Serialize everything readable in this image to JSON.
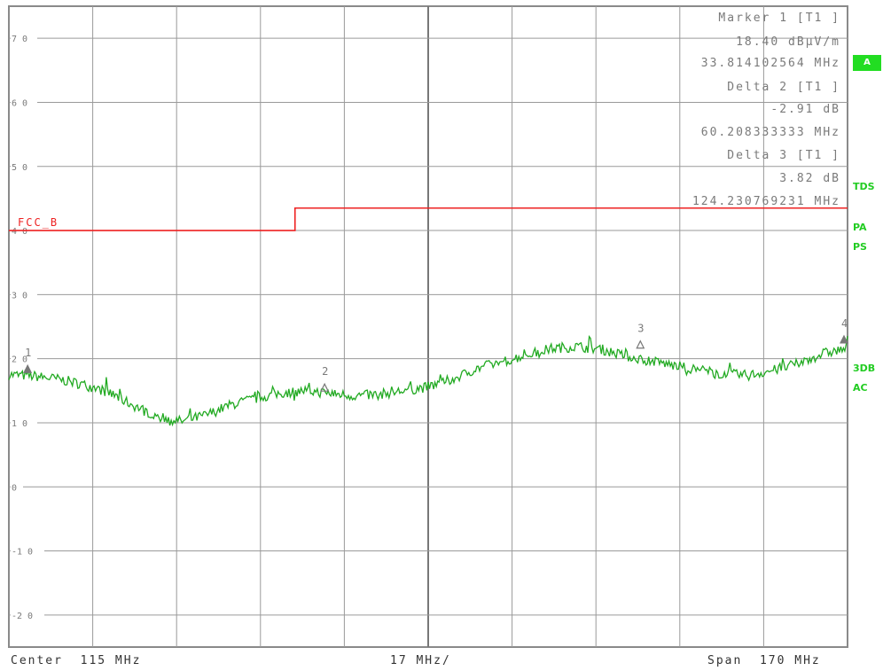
{
  "chart_data": {
    "type": "line",
    "title": "",
    "xlabel": "",
    "ylabel": "",
    "x_unit": "MHz",
    "xlim": [
      30,
      200
    ],
    "ylim": [
      -25,
      75
    ],
    "y_ticks": [
      70,
      60,
      50,
      40,
      30,
      20,
      10,
      0,
      -10,
      -20
    ],
    "grid": true,
    "series": [
      {
        "name": "",
        "color": "#22aa22",
        "points": [
          [
            30,
            17.5
          ],
          [
            35,
            17.3
          ],
          [
            40,
            16.8
          ],
          [
            45,
            16.0
          ],
          [
            50,
            14.8
          ],
          [
            55,
            12.8
          ],
          [
            60,
            11.0
          ],
          [
            65,
            10.2
          ],
          [
            70,
            11.2
          ],
          [
            75,
            12.8
          ],
          [
            80,
            13.8
          ],
          [
            85,
            14.6
          ],
          [
            90,
            15.0
          ],
          [
            95,
            14.6
          ],
          [
            100,
            14.2
          ],
          [
            105,
            14.4
          ],
          [
            110,
            15.0
          ],
          [
            115,
            15.6
          ],
          [
            120,
            16.8
          ],
          [
            125,
            18.5
          ],
          [
            130,
            19.5
          ],
          [
            135,
            20.6
          ],
          [
            140,
            21.6
          ],
          [
            145,
            21.9
          ],
          [
            150,
            21.5
          ],
          [
            155,
            20.4
          ],
          [
            160,
            19.7
          ],
          [
            165,
            18.9
          ],
          [
            170,
            18.2
          ],
          [
            175,
            17.6
          ],
          [
            180,
            17.4
          ],
          [
            185,
            18.2
          ],
          [
            190,
            19.2
          ],
          [
            195,
            20.8
          ],
          [
            200,
            21.6
          ]
        ]
      }
    ],
    "limit_line": {
      "name": "FCC_B",
      "color": "#ee2222",
      "points": [
        [
          30,
          40
        ],
        [
          88,
          40
        ],
        [
          88,
          43.5
        ],
        [
          200,
          43.5
        ]
      ]
    },
    "markers": [
      {
        "label": "1",
        "x": 33.8,
        "y": 18.4,
        "type": "filled"
      },
      {
        "label": "2",
        "x": 94.0,
        "y": 15.5,
        "type": "delta"
      },
      {
        "label": "3",
        "x": 158.0,
        "y": 22.2,
        "type": "delta"
      },
      {
        "label": "4",
        "x": 200.0,
        "y": 23.0,
        "type": "filled"
      }
    ]
  },
  "marker_info": {
    "lines": [
      "Marker 1 [T1 ]",
      "18.40 dBµV/m",
      "33.814102564 MHz",
      "Delta 2 [T1 ]",
      "-2.91 dB",
      "60.208333333 MHz",
      "Delta 3 [T1 ]",
      "3.82 dB",
      "124.230769231 MHz"
    ]
  },
  "side_labels": {
    "box": "A",
    "tds": "TDS",
    "pa": "PA",
    "ps": "PS",
    "db3": "3DB",
    "ac": "AC"
  },
  "footer": {
    "center": "Center  115 MHz",
    "div": "17 MHz/",
    "span": "Span  170 MHz"
  }
}
